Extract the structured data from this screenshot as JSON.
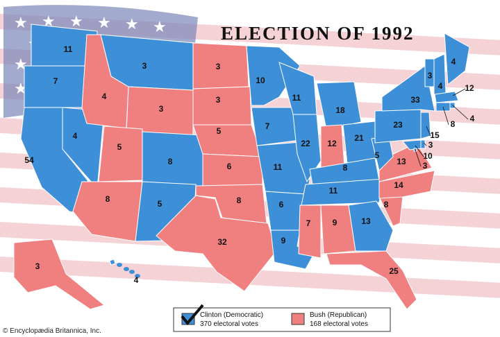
{
  "title": "ELECTION OF 1992",
  "states": [
    {
      "votes": 11,
      "color": "#3d8fd8"
    },
    {
      "votes": 7,
      "color": "#3d8fd8"
    },
    {
      "votes": 54,
      "color": "#3d8fd8"
    },
    {
      "votes": 4,
      "color": "#3d8fd8"
    },
    {
      "votes": 4,
      "color": "#f08080"
    },
    {
      "votes": 3,
      "color": "#3d8fd8"
    },
    {
      "votes": 3,
      "color": "#f08080"
    },
    {
      "votes": 5,
      "color": "#f08080"
    },
    {
      "votes": 8,
      "color": "#3d8fd8"
    },
    {
      "votes": 8,
      "color": "#f08080"
    },
    {
      "votes": 5,
      "color": "#3d8fd8"
    },
    {
      "votes": 3,
      "color": "#f08080"
    },
    {
      "votes": 3,
      "color": "#f08080"
    },
    {
      "votes": 5,
      "color": "#f08080"
    },
    {
      "votes": 6,
      "color": "#f08080"
    },
    {
      "votes": 8,
      "color": "#f08080"
    },
    {
      "votes": 32,
      "color": "#f08080"
    },
    {
      "votes": 10,
      "color": "#3d8fd8"
    },
    {
      "votes": 7,
      "color": "#3d8fd8"
    },
    {
      "votes": 11,
      "color": "#3d8fd8"
    },
    {
      "votes": 6,
      "color": "#3d8fd8"
    },
    {
      "votes": 9,
      "color": "#3d8fd8"
    },
    {
      "votes": 11,
      "color": "#3d8fd8"
    },
    {
      "votes": 22,
      "color": "#3d8fd8"
    },
    {
      "votes": 18,
      "color": "#3d8fd8"
    },
    {
      "votes": 12,
      "color": "#f08080"
    },
    {
      "votes": 21,
      "color": "#3d8fd8"
    },
    {
      "votes": 8,
      "color": "#3d8fd8"
    },
    {
      "votes": 11,
      "color": "#3d8fd8"
    },
    {
      "votes": 7,
      "color": "#f08080"
    },
    {
      "votes": 9,
      "color": "#f08080"
    },
    {
      "votes": 13,
      "color": "#3d8fd8"
    },
    {
      "votes": 25,
      "color": "#f08080"
    },
    {
      "votes": 8,
      "color": "#f08080"
    },
    {
      "votes": 14,
      "color": "#f08080"
    },
    {
      "votes": 13,
      "color": "#f08080"
    },
    {
      "votes": 5,
      "color": "#3d8fd8"
    },
    {
      "votes": 23,
      "color": "#3d8fd8"
    },
    {
      "votes": 33,
      "color": "#3d8fd8"
    },
    {
      "votes": 3,
      "color": "#3d8fd8"
    },
    {
      "votes": 4,
      "color": "#3d8fd8"
    },
    {
      "votes": 4,
      "color": "#3d8fd8"
    },
    {
      "votes": 12,
      "color": "#3d8fd8"
    },
    {
      "votes": 4,
      "color": "#3d8fd8"
    },
    {
      "votes": 8,
      "color": "#3d8fd8"
    },
    {
      "votes": 15,
      "color": "#3d8fd8"
    },
    {
      "votes": 3,
      "color": "#3d8fd8"
    },
    {
      "votes": 10,
      "color": "#3d8fd8"
    },
    {
      "votes": 3,
      "color": "#3d8fd8"
    },
    {
      "votes": 3,
      "color": "#f08080"
    },
    {
      "votes": 4,
      "color": "#3d8fd8"
    }
  ],
  "legend": [
    {
      "label": "Clinton (Democratic)",
      "votes": "370 electoral votes",
      "color": "#3d8fd8"
    },
    {
      "label": "Bush (Republican)",
      "votes": "168 electoral votes",
      "color": "#f08080"
    }
  ],
  "credit": "© Encyclopædia Britannica, Inc."
}
